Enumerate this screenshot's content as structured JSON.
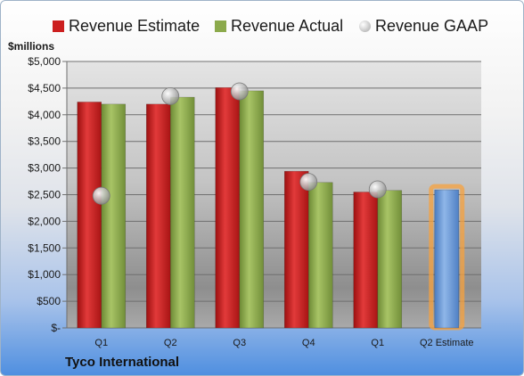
{
  "chart_data": {
    "type": "bar",
    "unit_label": "$millions",
    "company": "Tyco International",
    "categories": [
      "Q1",
      "Q2",
      "Q3",
      "Q4",
      "Q1",
      "Q2 Estimate"
    ],
    "ylim": [
      0,
      5000
    ],
    "yticks": [
      "$-",
      "$500",
      "$1,000",
      "$1,500",
      "$2,000",
      "$2,500",
      "$3,000",
      "$3,500",
      "$4,000",
      "$4,500",
      "$5,000"
    ],
    "grid": true,
    "legend_position": "top",
    "series": [
      {
        "name": "Revenue Estimate",
        "kind": "bar",
        "color": "#cc1f1f",
        "values": [
          4240,
          4200,
          4510,
          2940,
          2550,
          null
        ]
      },
      {
        "name": "Revenue Actual",
        "kind": "bar",
        "color": "#8caa4c",
        "values": [
          4200,
          4330,
          4450,
          2730,
          2580,
          null
        ]
      },
      {
        "name": "Revenue GAAP",
        "kind": "marker",
        "color": "#b8b8b8",
        "values": [
          2480,
          4350,
          4440,
          2740,
          2600,
          null
        ]
      },
      {
        "name": "Q2 Estimate",
        "kind": "bar",
        "color": "#6e9bd6",
        "highlight": "#f7a23e",
        "values": [
          null,
          null,
          null,
          null,
          null,
          2590
        ]
      }
    ]
  }
}
